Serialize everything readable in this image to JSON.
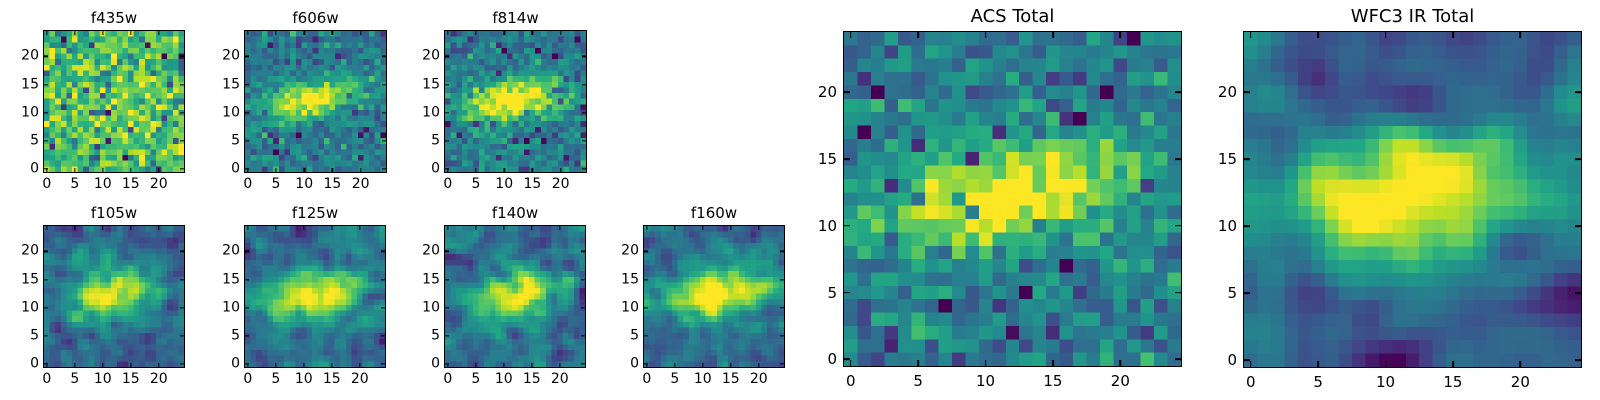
{
  "figure": {
    "background_color": "#ffffff",
    "axis_color": "#000000",
    "text_color": "#000000"
  },
  "chart_data": {
    "type": "heatmap",
    "colormap": "viridis",
    "colormap_stops": [
      "#440154",
      "#482475",
      "#414487",
      "#355f8d",
      "#2a788e",
      "#21918c",
      "#22a884",
      "#44bf70",
      "#7ad151",
      "#bddf26",
      "#fde725"
    ],
    "grid_size": 25,
    "x_range": [
      -0.5,
      24.5
    ],
    "y_range": [
      -0.5,
      24.5
    ],
    "x_ticks": [
      0,
      5,
      10,
      15,
      20
    ],
    "y_ticks": [
      0,
      5,
      10,
      15,
      20
    ],
    "model_note": "procedural approximation of the 25x25 pixel galaxy cutouts: value = background + amplitude * elliptical-gaussian(center, sigmas, angle) + seeded noise (optionally smoothed), mapped through viridis",
    "panels": [
      {
        "id": "f435w",
        "title": "f435w",
        "size": "small",
        "model": {
          "background": 0.7,
          "amplitude": 0.08,
          "center_x": 12,
          "center_y": 12.3,
          "sigma_major": 6.0,
          "sigma_minor": 2.5,
          "angle_deg": 10,
          "noise_sigma": 0.15,
          "dark_pixel_fraction": 0.045,
          "dark_pixel_depth": 0.45,
          "smooth_passes": 0,
          "seed": 11
        }
      },
      {
        "id": "f606w",
        "title": "f606w",
        "size": "small",
        "model": {
          "background": 0.4,
          "amplitude": 0.62,
          "center_x": 11.5,
          "center_y": 12.4,
          "sigma_major": 5.8,
          "sigma_minor": 2.3,
          "angle_deg": 10,
          "noise_sigma": 0.1,
          "dark_pixel_fraction": 0.035,
          "dark_pixel_depth": 0.35,
          "smooth_passes": 0,
          "seed": 22
        }
      },
      {
        "id": "f814w",
        "title": "f814w",
        "size": "small",
        "model": {
          "background": 0.41,
          "amplitude": 0.68,
          "center_x": 11.8,
          "center_y": 12.3,
          "sigma_major": 6.2,
          "sigma_minor": 2.5,
          "angle_deg": 9,
          "noise_sigma": 0.1,
          "dark_pixel_fraction": 0.035,
          "dark_pixel_depth": 0.35,
          "smooth_passes": 0,
          "seed": 33
        }
      },
      {
        "id": "f105w",
        "title": "f105w",
        "size": "small",
        "model": {
          "background": 0.36,
          "amplitude": 0.7,
          "center_x": 12,
          "center_y": 12.3,
          "sigma_major": 5.6,
          "sigma_minor": 3.0,
          "angle_deg": 9,
          "noise_sigma": 0.2,
          "dark_pixel_fraction": 0.05,
          "dark_pixel_depth": 0.5,
          "smooth_passes": 1,
          "seed": 44
        }
      },
      {
        "id": "f125w",
        "title": "f125w",
        "size": "small",
        "model": {
          "background": 0.37,
          "amplitude": 0.72,
          "center_x": 12,
          "center_y": 12.3,
          "sigma_major": 5.8,
          "sigma_minor": 3.0,
          "angle_deg": 9,
          "noise_sigma": 0.2,
          "dark_pixel_fraction": 0.05,
          "dark_pixel_depth": 0.5,
          "smooth_passes": 1,
          "seed": 55
        }
      },
      {
        "id": "f140w",
        "title": "f140w",
        "size": "small",
        "model": {
          "background": 0.37,
          "amplitude": 0.74,
          "center_x": 12,
          "center_y": 12.3,
          "sigma_major": 5.8,
          "sigma_minor": 3.0,
          "angle_deg": 9,
          "noise_sigma": 0.2,
          "dark_pixel_fraction": 0.05,
          "dark_pixel_depth": 0.5,
          "smooth_passes": 1,
          "seed": 66
        }
      },
      {
        "id": "f160w",
        "title": "f160w",
        "size": "small",
        "model": {
          "background": 0.38,
          "amplitude": 0.8,
          "center_x": 12,
          "center_y": 12.4,
          "sigma_major": 5.8,
          "sigma_minor": 3.1,
          "angle_deg": 9,
          "noise_sigma": 0.18,
          "dark_pixel_fraction": 0.04,
          "dark_pixel_depth": 0.5,
          "smooth_passes": 1,
          "seed": 77
        }
      },
      {
        "id": "acs-total",
        "title": "ACS Total",
        "size": "large",
        "model": {
          "background": 0.42,
          "amplitude": 0.66,
          "center_x": 11.8,
          "center_y": 12.3,
          "sigma_major": 6.5,
          "sigma_minor": 2.6,
          "angle_deg": 9,
          "noise_sigma": 0.11,
          "dark_pixel_fraction": 0.04,
          "dark_pixel_depth": 0.38,
          "smooth_passes": 0,
          "seed": 88
        }
      },
      {
        "id": "wfc3-ir-total",
        "title": "WFC3 IR Total",
        "size": "large",
        "model": {
          "background": 0.3,
          "amplitude": 0.9,
          "center_x": 12,
          "center_y": 12.4,
          "sigma_major": 6.8,
          "sigma_minor": 3.4,
          "angle_deg": 9,
          "noise_sigma": 0.26,
          "dark_pixel_fraction": 0.06,
          "dark_pixel_depth": 0.5,
          "smooth_passes": 2,
          "seed": 99
        }
      }
    ]
  }
}
